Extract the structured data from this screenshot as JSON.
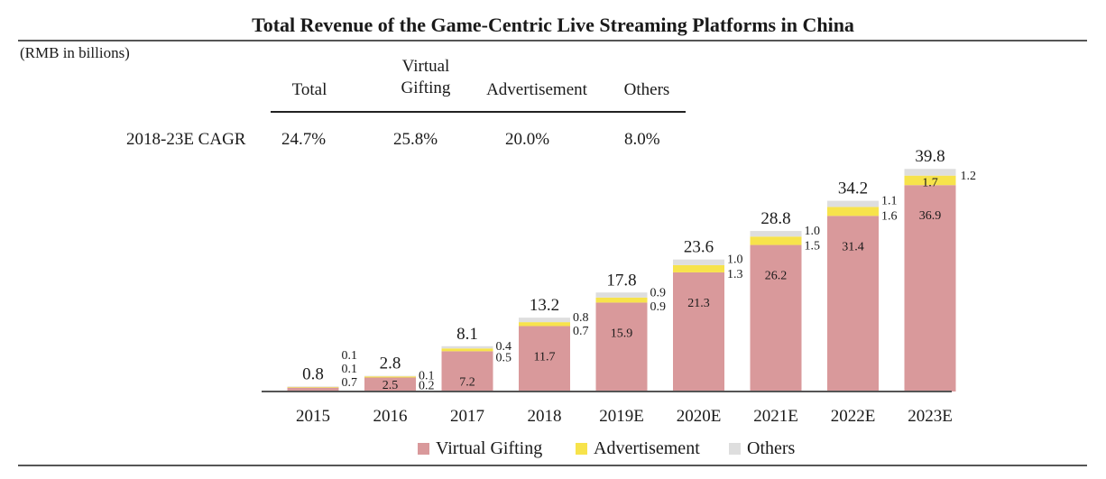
{
  "title": "Total Revenue of the Game-Centric Live Streaming Platforms in China",
  "unit": "(RMB in billions)",
  "cagr_table": {
    "headers": [
      "Total",
      "Virtual\nGifting",
      "Advertisement",
      "Others"
    ],
    "row_label": "2018-23E CAGR",
    "values": [
      "24.7%",
      "25.8%",
      "20.0%",
      "8.0%"
    ]
  },
  "colors": {
    "virtual_gifting": "#d9999b",
    "advertisement": "#f7e34b",
    "others": "#dedede",
    "axis": "#555555"
  },
  "chart_data": {
    "type": "bar",
    "stacked": true,
    "categories": [
      "2015",
      "2016",
      "2017",
      "2018",
      "2019E",
      "2020E",
      "2021E",
      "2022E",
      "2023E"
    ],
    "series": [
      {
        "name": "Virtual Gifting",
        "values": [
          0.7,
          2.5,
          7.2,
          11.7,
          15.9,
          21.3,
          26.2,
          31.4,
          36.9
        ],
        "labels": [
          "0.7",
          "2.5",
          "7.2",
          "11.7",
          "15.9",
          "21.3",
          "26.2",
          "31.4",
          "36.9"
        ]
      },
      {
        "name": "Advertisement",
        "values": [
          0.1,
          0.2,
          0.5,
          0.7,
          0.9,
          1.3,
          1.5,
          1.6,
          1.7
        ],
        "labels": [
          "0.1",
          "0.2",
          "0.5",
          "0.7",
          "0.9",
          "1.3",
          "1.5",
          "1.6",
          "1.7"
        ]
      },
      {
        "name": "Others",
        "values": [
          0.1,
          0.1,
          0.4,
          0.8,
          0.9,
          1.0,
          1.0,
          1.1,
          1.2
        ],
        "labels": [
          "0.1",
          "0.1",
          "0.4",
          "0.8",
          "0.9",
          "1.0",
          "1.0",
          "1.1",
          "1.2"
        ]
      }
    ],
    "totals": [
      "0.8",
      "2.8",
      "8.1",
      "13.2",
      "17.8",
      "23.6",
      "28.8",
      "34.2",
      "39.8"
    ],
    "ylim": [
      0,
      40
    ],
    "legend": [
      "Virtual Gifting",
      "Advertisement",
      "Others"
    ],
    "legend_position": "bottom",
    "grid": false
  }
}
